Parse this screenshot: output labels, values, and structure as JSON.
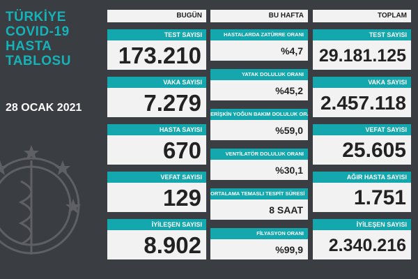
{
  "title_lines": [
    "TÜRKİYE",
    "COVID-19",
    "HASTA",
    "TABLOSU"
  ],
  "date": "28 OCAK 2021",
  "bugun": {
    "header": "BUGÜN",
    "cards": [
      {
        "label": "TEST SAYISI",
        "value": "173.210"
      },
      {
        "label": "VAKA SAYISI",
        "value": "7.279"
      },
      {
        "label": "HASTA SAYISI",
        "value": "670"
      },
      {
        "label": "VEFAT SAYISI",
        "value": "129"
      },
      {
        "label": "İYİLEŞEN SAYISI",
        "value": "8.902"
      }
    ]
  },
  "bu_hafta": {
    "header": "BU HAFTA",
    "cards": [
      {
        "label": "HASTALARDA ZATÜRRE ORANI",
        "value": "%4,7"
      },
      {
        "label": "YATAK DOLULUK ORANI",
        "value": "%45,2"
      },
      {
        "label": "ERİŞKİN YOĞUN BAKIM DOLULUK ORANI",
        "value": "%59,0"
      },
      {
        "label": "VENTİLATÖR DOLULUK ORANI",
        "value": "%30,1"
      },
      {
        "label": "ORTALAMA TEMASLI TESPİT SÜRESİ",
        "value": "8 SAAT"
      },
      {
        "label": "FİLYASYON ORANI",
        "value": "%99,9"
      }
    ]
  },
  "toplam": {
    "header": "TOPLAM",
    "cards": [
      {
        "label": "TEST SAYISI",
        "value": "29.181.125"
      },
      {
        "label": "VAKA SAYISI",
        "value": "2.457.118"
      },
      {
        "label": "VEFAT SAYISI",
        "value": "25.605"
      },
      {
        "label": "AĞIR HASTA SAYISI",
        "value": "1.751"
      },
      {
        "label": "İYİLEŞEN SAYISI",
        "value": "2.340.216"
      }
    ]
  },
  "colors": {
    "accent": "#14a8ae",
    "background": "#3a3d42",
    "card": "#f2f2f2"
  }
}
